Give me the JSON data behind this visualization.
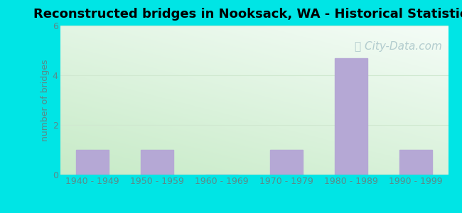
{
  "title": "Reconstructed bridges in Nooksack, WA - Historical Statistics",
  "categories": [
    "1940 - 1949",
    "1950 - 1959",
    "1960 - 1969",
    "1970 - 1979",
    "1980 - 1989",
    "1990 - 1999"
  ],
  "values": [
    1,
    1,
    0,
    1,
    4.7,
    1
  ],
  "bar_color": "#b5a8d5",
  "ylabel": "number of bridges",
  "ylim": [
    0,
    6
  ],
  "yticks": [
    0,
    2,
    4,
    6
  ],
  "outer_bg": "#00e5e5",
  "plot_bg_topleft": "#d0ece8",
  "plot_bg_topright": "#e8f0f8",
  "plot_bg_bottomleft": "#c8e8c0",
  "plot_bg_bottomright": "#d8eee8",
  "title_fontsize": 13,
  "axis_label_fontsize": 9,
  "tick_fontsize": 9,
  "tick_color": "#5a8a8a",
  "ylabel_color": "#5a8a8a",
  "watermark_text": "City-Data.com",
  "watermark_color": "#a8c4c8",
  "watermark_fontsize": 11,
  "grid_color": "#d0e8d0",
  "grid_linewidth": 0.8
}
